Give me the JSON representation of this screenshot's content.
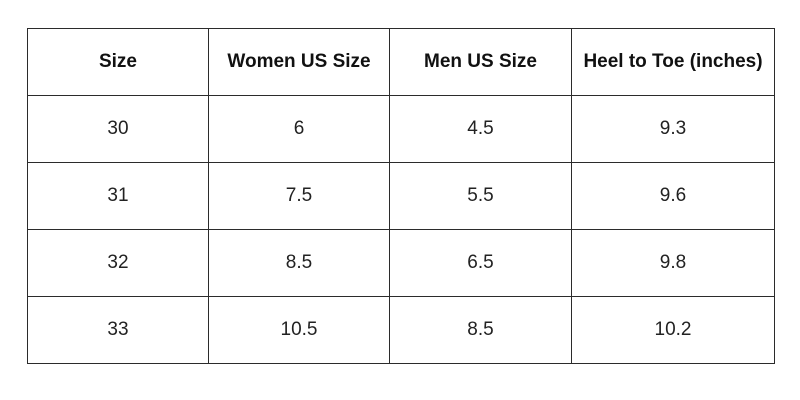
{
  "table": {
    "headers": [
      "Size",
      "Women US Size",
      "Men US Size",
      "Heel to Toe (inches)"
    ],
    "rows": [
      [
        "30",
        "6",
        "4.5",
        "9.3"
      ],
      [
        "31",
        "7.5",
        "5.5",
        "9.6"
      ],
      [
        "32",
        "8.5",
        "6.5",
        "9.8"
      ],
      [
        "33",
        "10.5",
        "8.5",
        "10.2"
      ]
    ]
  }
}
